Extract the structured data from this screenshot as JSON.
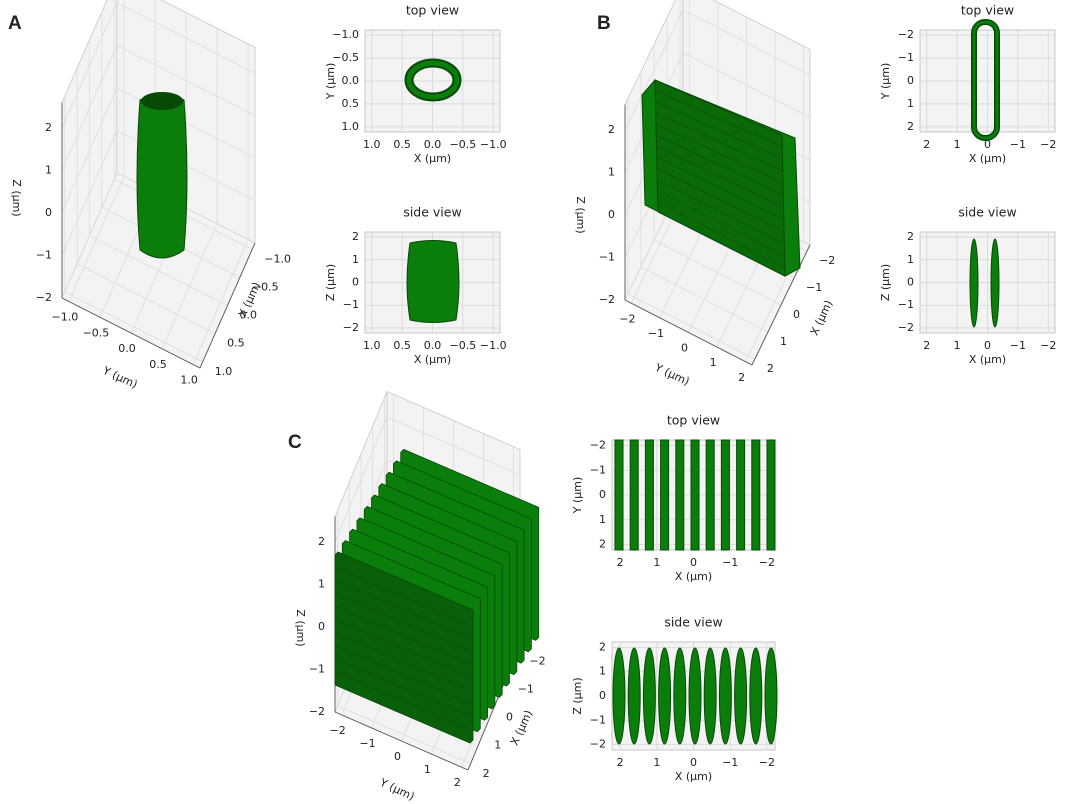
{
  "panels": [
    {
      "label": "A",
      "view3d": {
        "xlabel": "X (μm)",
        "ylabel": "Y (μm)",
        "zlabel": "Z (μm)",
        "xticks": [
          "−1.0",
          "−0.5",
          "0.0",
          "0.5",
          "1.0"
        ],
        "yticks": [
          "−1.0",
          "−0.5",
          "0.0",
          "0.5",
          "1.0"
        ],
        "zticks": [
          "−2",
          "−1",
          "0",
          "1",
          "2"
        ]
      },
      "top": {
        "title": "top view",
        "xlabel": "X (μm)",
        "ylabel": "Y (μm)",
        "xticks": [
          "1.0",
          "0.5",
          "0.0",
          "−0.5",
          "−1.0"
        ],
        "yticks": [
          "−1.0",
          "−0.5",
          "0.0",
          "0.5",
          "1.0"
        ]
      },
      "side": {
        "title": "side view",
        "xlabel": "X (μm)",
        "ylabel": "Z (μm)",
        "xticks": [
          "1.0",
          "0.5",
          "0.0",
          "−0.5",
          "−1.0"
        ],
        "yticks": [
          "2",
          "1",
          "0",
          "−1",
          "−2"
        ]
      }
    },
    {
      "label": "B",
      "view3d": {
        "xlabel": "X (μm)",
        "ylabel": "Y (μm)",
        "zlabel": "Z (μm)",
        "xticks": [
          "−2",
          "−1",
          "0",
          "1",
          "2"
        ],
        "yticks": [
          "−2",
          "−1",
          "0",
          "1",
          "2"
        ],
        "zticks": [
          "−2",
          "−1",
          "0",
          "1",
          "2"
        ]
      },
      "top": {
        "title": "top view",
        "xlabel": "X (μm)",
        "ylabel": "Y (μm)",
        "xticks": [
          "2",
          "1",
          "0",
          "−1",
          "−2"
        ],
        "yticks": [
          "−2",
          "−1",
          "0",
          "1",
          "2"
        ]
      },
      "side": {
        "title": "side view",
        "xlabel": "X (μm)",
        "ylabel": "Z (μm)",
        "xticks": [
          "2",
          "1",
          "0",
          "−1",
          "−2"
        ],
        "yticks": [
          "2",
          "1",
          "0",
          "−1",
          "−2"
        ]
      }
    },
    {
      "label": "C",
      "view3d": {
        "xlabel": "X (μm)",
        "ylabel": "Y (μm)",
        "zlabel": "Z (μm)",
        "xticks": [
          "−2",
          "−1",
          "0",
          "1",
          "2"
        ],
        "yticks": [
          "−2",
          "−1",
          "0",
          "1",
          "2"
        ],
        "zticks": [
          "−2",
          "−1",
          "0",
          "1",
          "2"
        ]
      },
      "top": {
        "title": "top view",
        "xlabel": "X (μm)",
        "ylabel": "Y (μm)",
        "xticks": [
          "2",
          "1",
          "0",
          "−1",
          "−2"
        ],
        "yticks": [
          "−2",
          "−1",
          "0",
          "1",
          "2"
        ]
      },
      "side": {
        "title": "side view",
        "xlabel": "X (μm)",
        "ylabel": "Z (μm)",
        "xticks": [
          "2",
          "1",
          "0",
          "−1",
          "−2"
        ],
        "yticks": [
          "2",
          "1",
          "0",
          "−1",
          "−2"
        ]
      }
    }
  ]
}
